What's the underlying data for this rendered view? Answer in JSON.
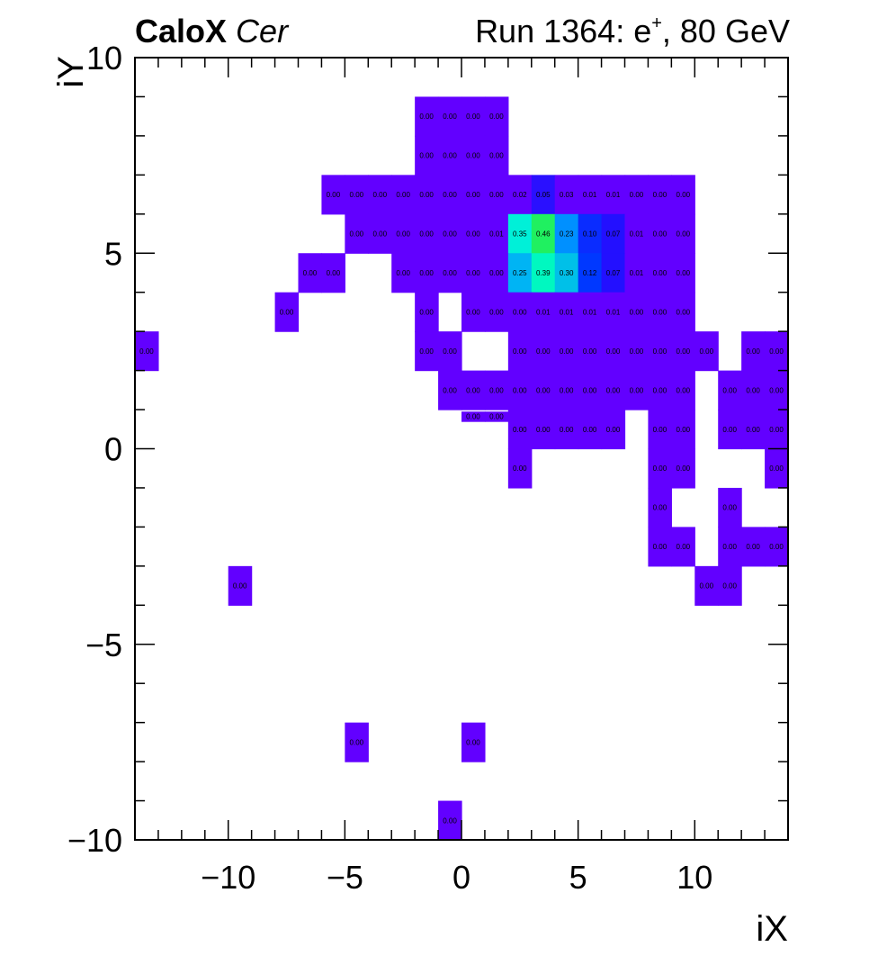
{
  "header": {
    "detector": "CaloX",
    "channel": "Cer",
    "run_prefix": "Run 1364: e",
    "run_charge": "+",
    "run_suffix": ", 80 GeV"
  },
  "chart_data": {
    "type": "heatmap",
    "xlabel": "iX",
    "ylabel": "iY",
    "xlim": [
      -14,
      14
    ],
    "ylim": [
      -10,
      10
    ],
    "x_ticks": [
      -10,
      -5,
      0,
      5,
      10
    ],
    "y_ticks": [
      -10,
      -5,
      0,
      5,
      10
    ],
    "x_tick_labels": [
      "−10",
      "−5",
      "0",
      "5",
      "10"
    ],
    "y_tick_labels": [
      "−10",
      "−5",
      "0",
      "5",
      "10"
    ],
    "colors": {
      "low": "#6200ff",
      "tier_005": "#2a10ff",
      "tier_007": "#2310ff",
      "tier_010": "#0a2cff",
      "tier_012": "#0038ff",
      "tier_023": "#0090ff",
      "tier_025": "#00b4f4",
      "tier_030": "#00c0e8",
      "tier_035": "#00f0d8",
      "tier_039": "#00f8c0",
      "tier_046": "#20f060"
    },
    "cells": [
      {
        "x": -1,
        "y": 9,
        "v": "0.00"
      },
      {
        "x": 0,
        "y": 9,
        "v": "0.00"
      },
      {
        "x": 1,
        "y": 9,
        "v": "0.00"
      },
      {
        "x": 2,
        "y": 9,
        "v": "0.00"
      },
      {
        "x": -1,
        "y": 8,
        "v": "0.00"
      },
      {
        "x": 0,
        "y": 8,
        "v": "0.00"
      },
      {
        "x": 1,
        "y": 8,
        "v": "0.00"
      },
      {
        "x": 2,
        "y": 8,
        "v": "0.00"
      },
      {
        "x": -5,
        "y": 7,
        "v": "0.00"
      },
      {
        "x": -4,
        "y": 7,
        "v": "0.00"
      },
      {
        "x": -3,
        "y": 7,
        "v": "0.00"
      },
      {
        "x": -2,
        "y": 7,
        "v": "0.00"
      },
      {
        "x": -1,
        "y": 7,
        "v": "0.00"
      },
      {
        "x": 0,
        "y": 7,
        "v": "0.00"
      },
      {
        "x": 1,
        "y": 7,
        "v": "0.00"
      },
      {
        "x": 2,
        "y": 7,
        "v": "0.00"
      },
      {
        "x": 3,
        "y": 7,
        "v": "0.02"
      },
      {
        "x": 4,
        "y": 7,
        "v": "0.05"
      },
      {
        "x": 5,
        "y": 7,
        "v": "0.03"
      },
      {
        "x": 6,
        "y": 7,
        "v": "0.01"
      },
      {
        "x": 7,
        "y": 7,
        "v": "0.01"
      },
      {
        "x": 8,
        "y": 7,
        "v": "0.00"
      },
      {
        "x": 9,
        "y": 7,
        "v": "0.00"
      },
      {
        "x": 10,
        "y": 7,
        "v": "0.00"
      },
      {
        "x": -4,
        "y": 6,
        "v": "0.00"
      },
      {
        "x": -3,
        "y": 6,
        "v": "0.00"
      },
      {
        "x": -2,
        "y": 6,
        "v": "0.00"
      },
      {
        "x": -1,
        "y": 6,
        "v": "0.00"
      },
      {
        "x": 0,
        "y": 6,
        "v": "0.00"
      },
      {
        "x": 1,
        "y": 6,
        "v": "0.00"
      },
      {
        "x": 2,
        "y": 6,
        "v": "0.01"
      },
      {
        "x": 3,
        "y": 6,
        "v": "0.35"
      },
      {
        "x": 4,
        "y": 6,
        "v": "0.46"
      },
      {
        "x": 5,
        "y": 6,
        "v": "0.23"
      },
      {
        "x": 6,
        "y": 6,
        "v": "0.10"
      },
      {
        "x": 7,
        "y": 6,
        "v": "0.07"
      },
      {
        "x": 8,
        "y": 6,
        "v": "0.01"
      },
      {
        "x": 9,
        "y": 6,
        "v": "0.00"
      },
      {
        "x": 10,
        "y": 6,
        "v": "0.00"
      },
      {
        "x": -6,
        "y": 5,
        "v": "0.00"
      },
      {
        "x": -5,
        "y": 5,
        "v": "0.00"
      },
      {
        "x": -2,
        "y": 5,
        "v": "0.00"
      },
      {
        "x": -1,
        "y": 5,
        "v": "0.00"
      },
      {
        "x": 0,
        "y": 5,
        "v": "0.00"
      },
      {
        "x": 1,
        "y": 5,
        "v": "0.00"
      },
      {
        "x": 2,
        "y": 5,
        "v": "0.00"
      },
      {
        "x": 3,
        "y": 5,
        "v": "0.25"
      },
      {
        "x": 4,
        "y": 5,
        "v": "0.39"
      },
      {
        "x": 5,
        "y": 5,
        "v": "0.30"
      },
      {
        "x": 6,
        "y": 5,
        "v": "0.12"
      },
      {
        "x": 7,
        "y": 5,
        "v": "0.07"
      },
      {
        "x": 8,
        "y": 5,
        "v": "0.01"
      },
      {
        "x": 9,
        "y": 5,
        "v": "0.00"
      },
      {
        "x": 10,
        "y": 5,
        "v": "0.00"
      },
      {
        "x": -7,
        "y": 4,
        "v": "0.00"
      },
      {
        "x": -1,
        "y": 4,
        "v": "0.00"
      },
      {
        "x": 1,
        "y": 4,
        "v": "0.00"
      },
      {
        "x": 2,
        "y": 4,
        "v": "0.00"
      },
      {
        "x": 3,
        "y": 4,
        "v": "0.00"
      },
      {
        "x": 4,
        "y": 4,
        "v": "0.01"
      },
      {
        "x": 5,
        "y": 4,
        "v": "0.01"
      },
      {
        "x": 6,
        "y": 4,
        "v": "0.01"
      },
      {
        "x": 7,
        "y": 4,
        "v": "0.01"
      },
      {
        "x": 8,
        "y": 4,
        "v": "0.00"
      },
      {
        "x": 9,
        "y": 4,
        "v": "0.00"
      },
      {
        "x": 10,
        "y": 4,
        "v": "0.00"
      },
      {
        "x": -13,
        "y": 3,
        "v": "0.00"
      },
      {
        "x": -1,
        "y": 3,
        "v": "0.00"
      },
      {
        "x": 0,
        "y": 3,
        "v": "0.00"
      },
      {
        "x": 3,
        "y": 3,
        "v": "0.00"
      },
      {
        "x": 4,
        "y": 3,
        "v": "0.00"
      },
      {
        "x": 5,
        "y": 3,
        "v": "0.00"
      },
      {
        "x": 6,
        "y": 3,
        "v": "0.00"
      },
      {
        "x": 7,
        "y": 3,
        "v": "0.00"
      },
      {
        "x": 8,
        "y": 3,
        "v": "0.00"
      },
      {
        "x": 9,
        "y": 3,
        "v": "0.00"
      },
      {
        "x": 10,
        "y": 3,
        "v": "0.00"
      },
      {
        "x": 11,
        "y": 3,
        "v": "0.00"
      },
      {
        "x": 13,
        "y": 3,
        "v": "0.00"
      },
      {
        "x": 14,
        "y": 3,
        "v": "0.00"
      },
      {
        "x": 0,
        "y": 2,
        "v": "0.00"
      },
      {
        "x": 1,
        "y": 2,
        "v": "0.00"
      },
      {
        "x": 2,
        "y": 2,
        "v": "0.00"
      },
      {
        "x": 3,
        "y": 2,
        "v": "0.00"
      },
      {
        "x": 4,
        "y": 2,
        "v": "0.00"
      },
      {
        "x": 5,
        "y": 2,
        "v": "0.00"
      },
      {
        "x": 6,
        "y": 2,
        "v": "0.00"
      },
      {
        "x": 7,
        "y": 2,
        "v": "0.00"
      },
      {
        "x": 8,
        "y": 2,
        "v": "0.00"
      },
      {
        "x": 9,
        "y": 2,
        "v": "0.00"
      },
      {
        "x": 10,
        "y": 2,
        "v": "0.00"
      },
      {
        "x": 12,
        "y": 2,
        "v": "0.00"
      },
      {
        "x": 13,
        "y": 2,
        "v": "0.00"
      },
      {
        "x": 14,
        "y": 2,
        "v": "0.00"
      },
      {
        "x": 1,
        "y": 1,
        "v": "0.00",
        "thin": true
      },
      {
        "x": 2,
        "y": 1,
        "v": "0.00",
        "thin": true
      },
      {
        "x": 3,
        "y": 1,
        "v": "0.00"
      },
      {
        "x": 4,
        "y": 1,
        "v": "0.00"
      },
      {
        "x": 5,
        "y": 1,
        "v": "0.00"
      },
      {
        "x": 6,
        "y": 1,
        "v": "0.00"
      },
      {
        "x": 7,
        "y": 1,
        "v": "0.00"
      },
      {
        "x": 9,
        "y": 1,
        "v": "0.00"
      },
      {
        "x": 10,
        "y": 1,
        "v": "0.00"
      },
      {
        "x": 12,
        "y": 1,
        "v": "0.00"
      },
      {
        "x": 13,
        "y": 1,
        "v": "0.00"
      },
      {
        "x": 14,
        "y": 1,
        "v": "0.00"
      },
      {
        "x": 3,
        "y": 0,
        "v": "0.00"
      },
      {
        "x": 9,
        "y": 0,
        "v": "0.00"
      },
      {
        "x": 10,
        "y": 0,
        "v": "0.00"
      },
      {
        "x": 14,
        "y": 0,
        "v": "0.00"
      },
      {
        "x": 9,
        "y": -1,
        "v": "0.00"
      },
      {
        "x": 12,
        "y": -1,
        "v": "0.00"
      },
      {
        "x": 9,
        "y": -2,
        "v": "0.00"
      },
      {
        "x": 10,
        "y": -2,
        "v": "0.00"
      },
      {
        "x": 12,
        "y": -2,
        "v": "0.00"
      },
      {
        "x": 13,
        "y": -2,
        "v": "0.00"
      },
      {
        "x": 14,
        "y": -2,
        "v": "0.00"
      },
      {
        "x": -9,
        "y": -3,
        "v": "0.00"
      },
      {
        "x": 11,
        "y": -3,
        "v": "0.00"
      },
      {
        "x": 12,
        "y": -3,
        "v": "0.00"
      },
      {
        "x": -4,
        "y": -7,
        "v": "0.00"
      },
      {
        "x": 1,
        "y": -7,
        "v": "0.00"
      },
      {
        "x": 0,
        "y": -9,
        "v": "0.00"
      }
    ]
  }
}
